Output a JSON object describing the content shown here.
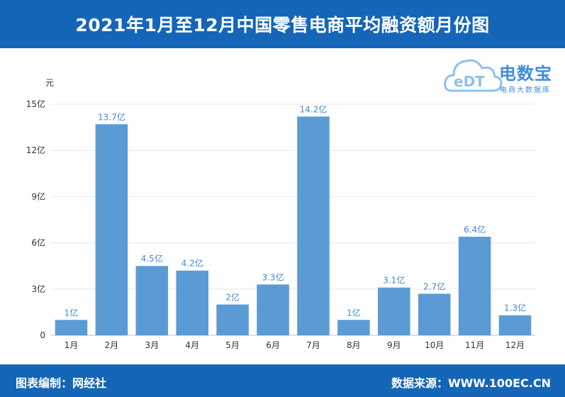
{
  "header": {
    "title": "2021年1月至12月中国零售电商平均融资额月份图"
  },
  "logo": {
    "mark": "eDT",
    "name": "电数宝",
    "subtitle": "电商大数据库"
  },
  "footer": {
    "left": "图表编制：网经社",
    "right": "数据来源：WWW.100EC.CN"
  },
  "colors": {
    "header_bg": "#1565b8",
    "bar": "#5b9bd5",
    "label": "#3f8ad8"
  },
  "chart_data": {
    "type": "bar",
    "title": "2021年1月至12月中国零售电商平均融资额月份图",
    "ylabel": "元",
    "xlabel": "",
    "categories": [
      "1月",
      "2月",
      "3月",
      "4月",
      "5月",
      "6月",
      "7月",
      "8月",
      "9月",
      "10月",
      "11月",
      "12月"
    ],
    "values": [
      1,
      13.7,
      4.5,
      4.2,
      2,
      3.3,
      14.2,
      1,
      3.1,
      2.7,
      6.4,
      1.3
    ],
    "data_labels": [
      "1亿",
      "13.7亿",
      "4.5亿",
      "4.2亿",
      "2亿",
      "3.3亿",
      "14.2亿",
      "1亿",
      "3.1亿",
      "2.7亿",
      "6.4亿",
      "1.3亿"
    ],
    "yticks": [
      0,
      3,
      6,
      9,
      12,
      15
    ],
    "ytick_labels": [
      "0",
      "3亿",
      "6亿",
      "9亿",
      "12亿",
      "15亿"
    ],
    "ylim": [
      0,
      15
    ],
    "grid": true,
    "legend": "none"
  }
}
